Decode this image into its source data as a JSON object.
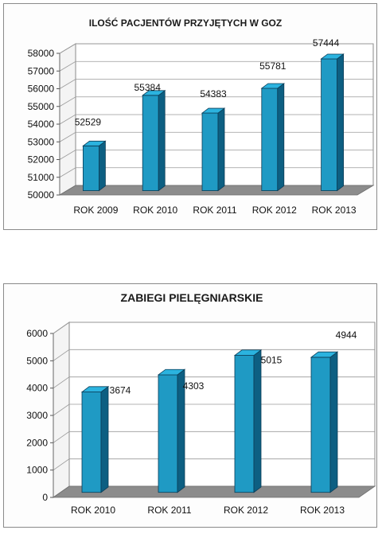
{
  "chart_data": [
    {
      "type": "bar",
      "title": "ILOŚĆ PACJENTÓW PRZYJĘTYCH  W GOZ",
      "categories": [
        "ROK 2009",
        "ROK 2010",
        "ROK 2011",
        "ROK 2012",
        "ROK 2013"
      ],
      "values": [
        52529,
        55384,
        54383,
        55781,
        57444
      ],
      "data_labels": [
        "52529",
        "55384",
        "54383",
        "55781",
        "57444"
      ],
      "ylim": [
        50000,
        58000
      ],
      "yticks": [
        50000,
        51000,
        52000,
        53000,
        54000,
        55000,
        56000,
        57000,
        58000
      ],
      "grid": true,
      "bar_color": "#1f9ac4",
      "floor_color": "#8c8c8c"
    },
    {
      "type": "bar",
      "title": "ZABIEGI PIELĘGNIARSKIE",
      "categories": [
        "ROK 2010",
        "ROK 2011",
        "ROK 2012",
        "ROK 2013"
      ],
      "values": [
        3674,
        4303,
        5015,
        4944
      ],
      "data_labels": [
        "3674",
        "4303",
        "5015",
        "4944"
      ],
      "ylim": [
        0,
        6000
      ],
      "yticks": [
        0,
        1000,
        2000,
        3000,
        4000,
        5000,
        6000
      ],
      "grid": true,
      "bar_color": "#1f9ac4",
      "floor_color": "#8c8c8c"
    }
  ]
}
